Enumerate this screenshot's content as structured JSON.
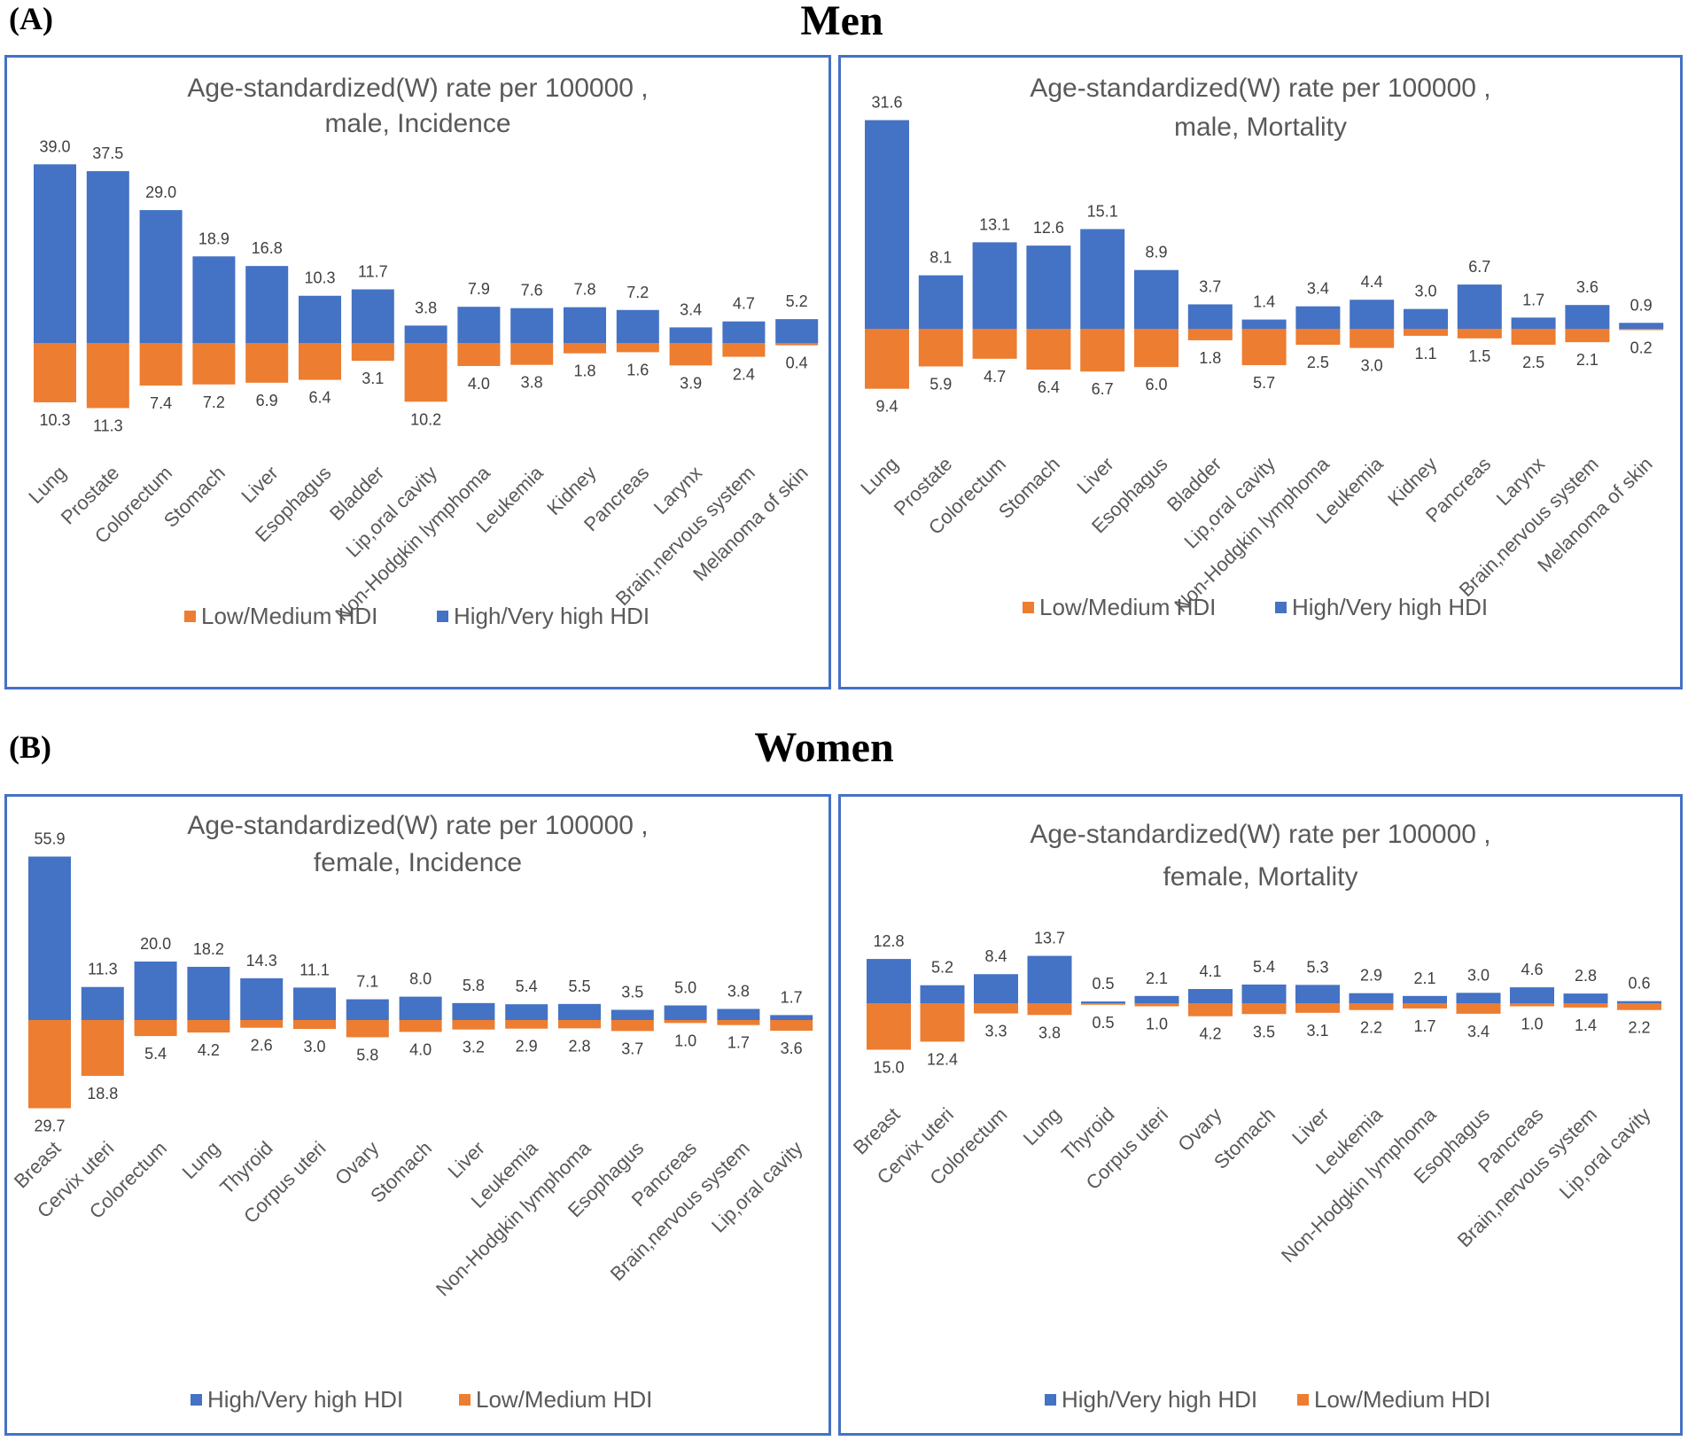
{
  "figure": {
    "section_a": {
      "label": "(A)",
      "title": "Men"
    },
    "section_b": {
      "label": "(B)",
      "title": "Women"
    }
  },
  "colors": {
    "high": "#4472c4",
    "low": "#ed7d31",
    "border": "#4472c4"
  },
  "chart_data": [
    {
      "type": "bar",
      "id": "men-incidence",
      "title_lines": [
        "Age-standardized(W) rate per 100000 ,",
        "male, Incidence"
      ],
      "categories": [
        "Lung",
        "Prostate",
        "Colorectum",
        "Stomach",
        "Liver",
        "Esophagus",
        "Bladder",
        "Lip,oral cavity",
        "Non-Hodgkin lymphoma",
        "Leukemia",
        "Kidney",
        "Pancreas",
        "Larynx",
        "Brain,nervous system",
        "Melanoma of skin"
      ],
      "series": [
        {
          "name": "High/Very high HDI",
          "direction": "up",
          "values": [
            39.0,
            37.5,
            29.0,
            18.9,
            16.8,
            10.3,
            11.7,
            3.8,
            7.9,
            7.6,
            7.8,
            7.2,
            3.4,
            4.7,
            5.2
          ],
          "labels": [
            "39.0",
            "37.5",
            "29.0",
            "18.9",
            "16.8",
            "10.3",
            "11.7",
            "3.8",
            "7.9",
            "7.6",
            "7.8",
            "7.2",
            "3.4",
            "4.7",
            "5.2"
          ]
        },
        {
          "name": "Low/Medium HDI",
          "direction": "down",
          "values": [
            10.3,
            11.3,
            7.4,
            7.2,
            6.9,
            6.4,
            3.1,
            10.2,
            4.0,
            3.8,
            1.8,
            1.6,
            3.9,
            2.4,
            0.4
          ],
          "labels": [
            "10.3",
            "11.3",
            "7.4",
            "7.2",
            "6.9",
            "6.4",
            "3.1",
            "10.2",
            "4.0",
            "3.8",
            "1.8",
            "1.6",
            "3.9",
            "2.4",
            "0.4"
          ]
        }
      ],
      "legend": [
        "Low/Medium HDI",
        "High/Very high HDI"
      ],
      "legend_position": "bottom"
    },
    {
      "type": "bar",
      "id": "men-mortality",
      "title_lines": [
        "Age-standardized(W) rate per 100000 ,",
        "male, Mortality"
      ],
      "categories": [
        "Lung",
        "Prostate",
        "Colorectum",
        "Stomach",
        "Liver",
        "Esophagus",
        "Bladder",
        "Lip,oral cavity",
        "Non-Hodgkin lymphoma",
        "Leukemia",
        "Kidney",
        "Pancreas",
        "Larynx",
        "Brain,nervous system",
        "Melanoma of skin"
      ],
      "series": [
        {
          "name": "High/Very high HDI",
          "direction": "up",
          "values": [
            31.6,
            8.1,
            13.1,
            12.6,
            15.1,
            8.9,
            3.7,
            1.4,
            3.4,
            4.4,
            3.0,
            6.7,
            1.7,
            3.6,
            0.9
          ],
          "labels": [
            "31.6",
            "8.1",
            "13.1",
            "12.6",
            "15.1",
            "8.9",
            "3.7",
            "1.4",
            "3.4",
            "4.4",
            "3.0",
            "6.7",
            "1.7",
            "3.6",
            "0.9"
          ]
        },
        {
          "name": "Low/Medium HDI",
          "direction": "down",
          "values": [
            9.4,
            5.9,
            4.7,
            6.4,
            6.7,
            6.0,
            1.8,
            5.7,
            2.5,
            3.0,
            1.1,
            1.5,
            2.5,
            2.1,
            0.2
          ],
          "labels": [
            "9.4",
            "5.9",
            "4.7",
            "6.4",
            "6.7",
            "6.0",
            "1.8",
            "5.7",
            "2.5",
            "3.0",
            "1.1",
            "1.5",
            "2.5",
            "2.1",
            "0.2"
          ]
        }
      ],
      "legend": [
        "Low/Medium HDI",
        "High/Very high HDI"
      ],
      "legend_position": "bottom"
    },
    {
      "type": "bar",
      "id": "women-incidence",
      "title_lines": [
        "Age-standardized(W) rate per 100000 ,",
        "female, Incidence"
      ],
      "categories": [
        "Breast",
        "Cervix uteri",
        "Colorectum",
        "Lung",
        "Thyroid",
        "Corpus uteri",
        "Ovary",
        "Stomach",
        "Liver",
        "Leukemia",
        "Non-Hodgkin lymphoma",
        "Esophagus",
        "Pancreas",
        "Brain,nervous system",
        "Lip,oral cavity"
      ],
      "series": [
        {
          "name": "High/Very high HDI",
          "direction": "up",
          "values": [
            55.9,
            11.3,
            20.0,
            18.2,
            14.3,
            11.1,
            7.1,
            8.0,
            5.8,
            5.4,
            5.5,
            3.5,
            5.0,
            3.8,
            1.7
          ],
          "labels": [
            "55.9",
            "11.3",
            "20.0",
            "18.2",
            "14.3",
            "11.1",
            "7.1",
            "8.0",
            "5.8",
            "5.4",
            "5.5",
            "3.5",
            "5.0",
            "3.8",
            "1.7"
          ]
        },
        {
          "name": "Low/Medium HDI",
          "direction": "down",
          "values": [
            29.7,
            18.8,
            5.4,
            4.2,
            2.6,
            3.0,
            5.8,
            4.0,
            3.2,
            2.9,
            2.8,
            3.7,
            1.0,
            1.7,
            3.6
          ],
          "labels": [
            "29.7",
            "18.8",
            "5.4",
            "4.2",
            "2.6",
            "3.0",
            "5.8",
            "4.0",
            "3.2",
            "2.9",
            "2.8",
            "3.7",
            "1.0",
            "1.7",
            "3.6"
          ]
        }
      ],
      "legend": [
        "High/Very high HDI",
        "Low/Medium HDI"
      ],
      "legend_position": "bottom"
    },
    {
      "type": "bar",
      "id": "women-mortality",
      "title_lines": [
        "Age-standardized(W) rate per 100000 ,",
        "female, Mortality"
      ],
      "categories": [
        "Breast",
        "Cervix uteri",
        "Colorectum",
        "Lung",
        "Thyroid",
        "Corpus uteri",
        "Ovary",
        "Stomach",
        "Liver",
        "Leukemia",
        "Non-Hodgkin lymphoma",
        "Esophagus",
        "Pancreas",
        "Brain,nervous system",
        "Lip,oral cavity"
      ],
      "series": [
        {
          "name": "High/Very high HDI",
          "direction": "up",
          "values": [
            12.8,
            5.2,
            8.4,
            13.7,
            0.5,
            2.1,
            4.1,
            5.4,
            5.3,
            2.9,
            2.1,
            3.0,
            4.6,
            2.8,
            0.6
          ],
          "labels": [
            "12.8",
            "5.2",
            "8.4",
            "13.7",
            "0.5",
            "2.1",
            "4.1",
            "5.4",
            "5.3",
            "2.9",
            "2.1",
            "3.0",
            "4.6",
            "2.8",
            "0.6"
          ]
        },
        {
          "name": "Low/Medium HDI",
          "direction": "down",
          "values": [
            15.0,
            12.4,
            3.3,
            3.8,
            0.5,
            1.0,
            4.2,
            3.5,
            3.1,
            2.2,
            1.7,
            3.4,
            1.0,
            1.4,
            2.2
          ],
          "labels": [
            "15.0",
            "12.4",
            "3.3",
            "3.8",
            "0.5",
            "1.0",
            "4.2",
            "3.5",
            "3.1",
            "2.2",
            "1.7",
            "3.4",
            "1.0",
            "1.4",
            "2.2"
          ]
        }
      ],
      "legend": [
        "High/Very high HDI",
        "Low/Medium HDI"
      ],
      "legend_position": "bottom"
    }
  ]
}
